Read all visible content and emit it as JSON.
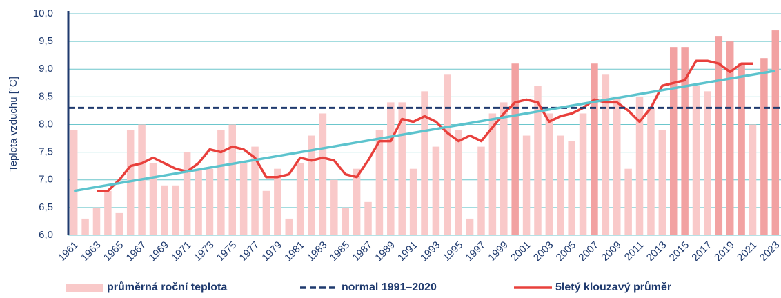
{
  "chart_data": {
    "type": "bar",
    "ylabel": "Teplota vzduchu [°C]",
    "categories": [
      "1961",
      null,
      "1963",
      null,
      "1965",
      null,
      "1967",
      null,
      "1969",
      null,
      "1971",
      null,
      "1973",
      null,
      "1975",
      null,
      "1977",
      null,
      "1979",
      null,
      "1981",
      null,
      "1983",
      null,
      "1985",
      null,
      "1987",
      null,
      "1989",
      null,
      "1991",
      null,
      "1993",
      null,
      "1995",
      null,
      "1997",
      null,
      "1999",
      null,
      "2001",
      null,
      "2003",
      null,
      "2005",
      null,
      "2007",
      null,
      "2009",
      null,
      "2011",
      null,
      "2013",
      null,
      "2015",
      null,
      "2017",
      null,
      "2019",
      null,
      "2021",
      null,
      "2023"
    ],
    "ylim": [
      6,
      10
    ],
    "yticks": [
      {
        "value": 6,
        "label": "6,0"
      },
      {
        "value": 6.5,
        "label": "6,5"
      },
      {
        "value": 7,
        "label": "7,0"
      },
      {
        "value": 7.5,
        "label": "7,5"
      },
      {
        "value": 8,
        "label": "8,0"
      },
      {
        "value": 8.5,
        "label": "8,5"
      },
      {
        "value": 9,
        "label": "9,0"
      },
      {
        "value": 9.5,
        "label": "9,5"
      },
      {
        "value": 10,
        "label": "10,0"
      }
    ],
    "grid": true,
    "series": [
      {
        "name": "průměrná roční teplota",
        "type": "bar",
        "color": "#f9c9c9",
        "values": [
          7.9,
          6.3,
          6.5,
          6.8,
          6.4,
          7.9,
          8.0,
          7.3,
          6.9,
          6.9,
          7.5,
          7.2,
          7.2,
          7.9,
          8.0,
          7.3,
          7.6,
          6.8,
          7.2,
          6.3,
          7.3,
          7.8,
          8.2,
          7.0,
          6.5,
          7.2,
          6.6,
          7.9,
          8.4,
          8.4,
          7.2,
          8.6,
          7.6,
          8.9,
          7.9,
          6.3,
          7.6,
          8.2,
          8.4,
          9.1,
          7.8,
          8.7,
          8.2,
          7.8,
          7.7,
          8.2,
          9.1,
          8.9,
          8.5,
          7.2,
          8.5,
          8.3,
          7.9,
          9.4,
          9.4,
          8.7,
          8.6,
          9.6,
          9.5,
          9.1,
          8.0,
          9.2,
          9.7
        ],
        "colors": [
          "#f9c9c9",
          "#f9c9c9",
          "#f9c9c9",
          "#f9c9c9",
          "#f9c9c9",
          "#f9c9c9",
          "#f9c9c9",
          "#f9c9c9",
          "#f9c9c9",
          "#f9c9c9",
          "#f9c9c9",
          "#f9c9c9",
          "#f9c9c9",
          "#f9c9c9",
          "#f9c9c9",
          "#f9c9c9",
          "#f9c9c9",
          "#f9c9c9",
          "#f9c9c9",
          "#f9c9c9",
          "#f9c9c9",
          "#f9c9c9",
          "#f9c9c9",
          "#f9c9c9",
          "#f9c9c9",
          "#f9c9c9",
          "#f9c9c9",
          "#f9c9c9",
          "#f9c9c9",
          "#f9c9c9",
          "#f9c9c9",
          "#f9c9c9",
          "#f9c9c9",
          "#f9c9c9",
          "#f9c9c9",
          "#f9c9c9",
          "#f9c9c9",
          "#f9c9c9",
          "#f9c9c9",
          "#f2a2a2",
          "#f9c9c9",
          "#f9c9c9",
          "#f9c9c9",
          "#f9c9c9",
          "#f9c9c9",
          "#f9c9c9",
          "#f2a2a2",
          "#f9c9c9",
          "#f9c9c9",
          "#f9c9c9",
          "#f9c9c9",
          "#f9c9c9",
          "#f9c9c9",
          "#f2a2a2",
          "#f2a2a2",
          "#f9c9c9",
          "#f9c9c9",
          "#f2a2a2",
          "#f2a2a2",
          "#f2a2a2",
          "#f9c9c9",
          "#f2a2a2",
          "#f2a2a2"
        ]
      },
      {
        "name": "normal 1991–2020",
        "type": "hline",
        "color": "#1f3a6e",
        "value": 8.3
      },
      {
        "name": "5letý klouzavý průměr",
        "type": "line",
        "color": "#e8403c",
        "values": [
          null,
          null,
          6.8,
          6.8,
          7.0,
          7.25,
          7.3,
          7.4,
          7.3,
          7.2,
          7.15,
          7.3,
          7.55,
          7.5,
          7.6,
          7.55,
          7.4,
          7.05,
          7.05,
          7.1,
          7.4,
          7.35,
          7.4,
          7.35,
          7.1,
          7.05,
          7.35,
          7.7,
          7.7,
          8.1,
          8.05,
          8.15,
          8.05,
          7.85,
          7.7,
          7.8,
          7.7,
          7.95,
          8.2,
          8.4,
          8.45,
          8.4,
          8.05,
          8.15,
          8.2,
          8.3,
          8.45,
          8.4,
          8.4,
          8.25,
          8.05,
          8.3,
          8.7,
          8.75,
          8.8,
          9.15,
          9.15,
          9.1,
          8.95,
          9.1,
          9.1,
          null,
          null
        ]
      }
    ],
    "trend": {
      "color": "#5cc3cd",
      "values": [
        6.8,
        8.97
      ]
    }
  }
}
